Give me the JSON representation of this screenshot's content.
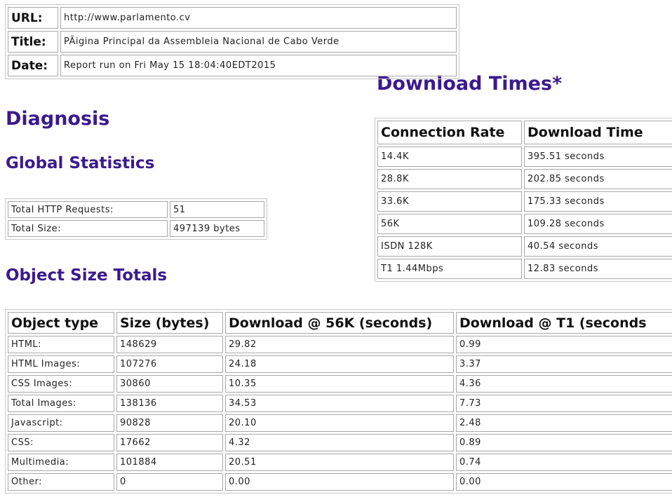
{
  "meta": {
    "rows": [
      [
        "URL:",
        "http://www.parlamento.cv"
      ],
      [
        "Title:",
        "PÃigina Principal da Assembleia Nacional de Cabo Verde"
      ],
      [
        "Date:",
        "Report run on Fri May 15 18:04:40EDT2015"
      ]
    ]
  },
  "headings": {
    "download_times": "Download Times*",
    "diagnosis": "Diagnosis",
    "global_statistics": "Global Statistics",
    "object_size_totals": "Object Size Totals"
  },
  "global_table": {
    "rows": [
      [
        "Total HTTP Requests:",
        "51"
      ],
      [
        "Total Size:",
        "497139 bytes"
      ]
    ]
  },
  "download_table": {
    "header": [
      "Connection Rate",
      "Download Time"
    ],
    "rows": [
      [
        "14.4K",
        "395.51 seconds"
      ],
      [
        "28.8K",
        "202.85 seconds"
      ],
      [
        "33.6K",
        "175.33 seconds"
      ],
      [
        "56K",
        "109.28 seconds"
      ],
      [
        "ISDN 128K",
        "40.54 seconds"
      ],
      [
        "T1 1.44Mbps",
        "12.83 seconds"
      ]
    ]
  },
  "object_table": {
    "header": [
      "Object type",
      "Size (bytes)",
      "Download @ 56K (seconds)",
      "Download @ T1 (seconds"
    ],
    "rows": [
      [
        "HTML:",
        "148629",
        "29.82",
        "0.99"
      ],
      [
        "HTML Images:",
        "107276",
        "24.18",
        "3.37"
      ],
      [
        "CSS Images:",
        "30860",
        "10.35",
        "4.36"
      ],
      [
        "Total Images:",
        "138136",
        "34.53",
        "7.73"
      ],
      [
        "Javascript:",
        "90828",
        "20.10",
        "2.48"
      ],
      [
        "CSS:",
        "17662",
        "4.32",
        "0.89"
      ],
      [
        "Multimedia:",
        "101884",
        "20.51",
        "0.74"
      ],
      [
        "Other:",
        "0",
        "0.00",
        "0.00"
      ]
    ]
  }
}
